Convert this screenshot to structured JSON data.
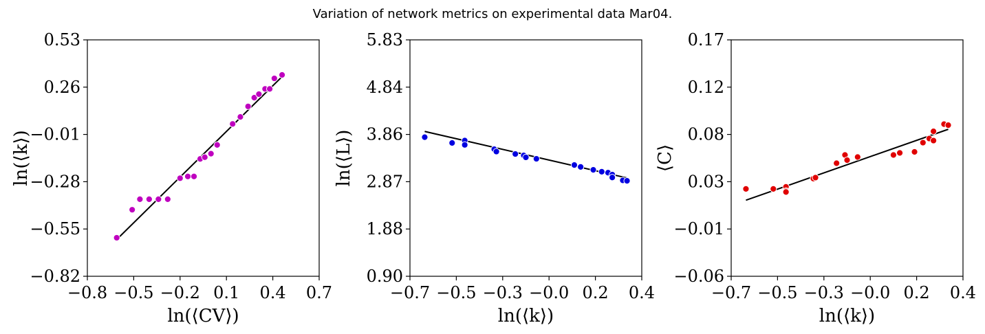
{
  "figure": {
    "title": "Variation of network metrics on experimental data Mar04."
  },
  "chart_data": [
    {
      "type": "scatter",
      "xlabel": "ln(⟨CV⟩)",
      "ylabel": "ln(⟨k⟩)",
      "xlim": [
        -0.8,
        0.7
      ],
      "ylim": [
        -0.82,
        0.53
      ],
      "xticks": [
        "−0.8",
        "−0.5",
        "−0.2",
        "0.1",
        "0.4",
        "0.7"
      ],
      "yticks": [
        "−0.82",
        "−0.55",
        "−0.28",
        "−0.01",
        "0.26",
        "0.53"
      ],
      "point_color": "#bf00bf",
      "line_color": "#000000",
      "points": [
        [
          -0.61,
          -0.6
        ],
        [
          -0.51,
          -0.44
        ],
        [
          -0.46,
          -0.38
        ],
        [
          -0.4,
          -0.38
        ],
        [
          -0.34,
          -0.38
        ],
        [
          -0.28,
          -0.38
        ],
        [
          -0.2,
          -0.26
        ],
        [
          -0.15,
          -0.25
        ],
        [
          -0.11,
          -0.25
        ],
        [
          -0.07,
          -0.15
        ],
        [
          -0.04,
          -0.14
        ],
        [
          0.0,
          -0.12
        ],
        [
          0.04,
          -0.07
        ],
        [
          0.14,
          0.05
        ],
        [
          0.19,
          0.09
        ],
        [
          0.24,
          0.15
        ],
        [
          0.28,
          0.2
        ],
        [
          0.31,
          0.22
        ],
        [
          0.35,
          0.25
        ],
        [
          0.38,
          0.25
        ],
        [
          0.41,
          0.31
        ],
        [
          0.46,
          0.33
        ]
      ],
      "fit_line": [
        [
          -0.61,
          -0.61
        ],
        [
          0.46,
          0.32
        ]
      ]
    },
    {
      "type": "scatter",
      "xlabel": "ln(⟨k⟩)",
      "ylabel": "ln(⟨L⟩)",
      "xlim": [
        -0.7,
        0.4
      ],
      "ylim": [
        0.9,
        5.83
      ],
      "xticks": [
        "−0.7",
        "−0.5",
        "−0.3",
        "−0.0",
        "0.2",
        "0.4"
      ],
      "yticks": [
        "0.90",
        "1.88",
        "2.87",
        "3.86",
        "4.84",
        "5.83"
      ],
      "point_color": "#0000e0",
      "line_color": "#000000",
      "points": [
        [
          -0.63,
          3.8
        ],
        [
          -0.5,
          3.68
        ],
        [
          -0.44,
          3.73
        ],
        [
          -0.44,
          3.64
        ],
        [
          -0.3,
          3.55
        ],
        [
          -0.29,
          3.5
        ],
        [
          -0.2,
          3.45
        ],
        [
          -0.16,
          3.42
        ],
        [
          -0.15,
          3.38
        ],
        [
          -0.1,
          3.35
        ],
        [
          0.08,
          3.22
        ],
        [
          0.11,
          3.18
        ],
        [
          0.17,
          3.12
        ],
        [
          0.21,
          3.08
        ],
        [
          0.24,
          3.06
        ],
        [
          0.26,
          3.02
        ],
        [
          0.26,
          2.96
        ],
        [
          0.31,
          2.9
        ],
        [
          0.33,
          2.89
        ]
      ],
      "fit_line": [
        [
          -0.63,
          3.92
        ],
        [
          0.33,
          2.95
        ]
      ]
    },
    {
      "type": "scatter",
      "xlabel": "ln(⟨k⟩)",
      "ylabel": "⟨C⟩",
      "xlim": [
        -0.7,
        0.4
      ],
      "ylim": [
        -0.06,
        0.17
      ],
      "xticks": [
        "−0.7",
        "−0.5",
        "−0.3",
        "−0.0",
        "0.2",
        "0.4"
      ],
      "yticks": [
        "−0.06",
        "−0.01",
        "0.03",
        "0.08",
        "0.12",
        "0.17"
      ],
      "point_color": "#e00000",
      "line_color": "#000000",
      "points": [
        [
          -0.63,
          0.025
        ],
        [
          -0.5,
          0.025
        ],
        [
          -0.44,
          0.027
        ],
        [
          -0.44,
          0.023
        ],
        [
          -0.44,
          0.022
        ],
        [
          -0.31,
          0.035
        ],
        [
          -0.3,
          0.036
        ],
        [
          -0.2,
          0.05
        ],
        [
          -0.16,
          0.058
        ],
        [
          -0.15,
          0.053
        ],
        [
          -0.1,
          0.056
        ],
        [
          0.07,
          0.058
        ],
        [
          0.1,
          0.06
        ],
        [
          0.17,
          0.061
        ],
        [
          0.21,
          0.07
        ],
        [
          0.24,
          0.074
        ],
        [
          0.26,
          0.081
        ],
        [
          0.26,
          0.072
        ],
        [
          0.31,
          0.088
        ],
        [
          0.33,
          0.087
        ]
      ],
      "fit_line": [
        [
          -0.63,
          0.014
        ],
        [
          0.33,
          0.083
        ]
      ]
    }
  ]
}
